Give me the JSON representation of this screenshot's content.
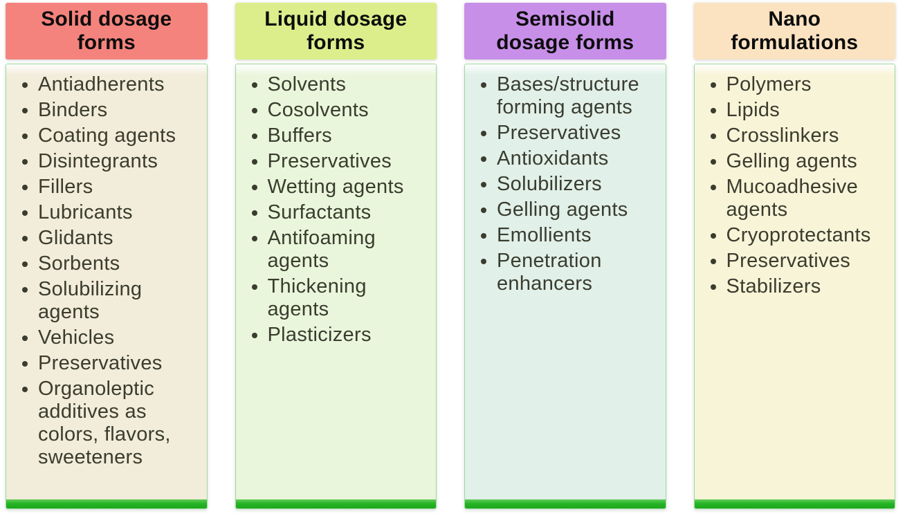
{
  "figure": {
    "description": "Four-column overview of excipient categories by dosage form type"
  },
  "accent": {
    "bottom_bar_color": "#27b527",
    "panel_border_color": "#9fd89f",
    "body_text_color": "#3a3c2e",
    "header_text_color": "#0d0d0d"
  },
  "columns": [
    {
      "title": "Solid dosage forms",
      "title_lines": [
        "Solid dosage",
        "forms"
      ],
      "header_color": "#f5837d",
      "body_color": "#f2ecda",
      "items": [
        "Antiadherents",
        "Binders",
        "Coating agents",
        "Disintegrants",
        "Fillers",
        "Lubricants",
        "Glidants",
        "Sorbents",
        "Solubilizing agents",
        "Vehicles",
        "Preservatives",
        "Organoleptic additives as colors, flavors, sweeteners"
      ]
    },
    {
      "title": "Liquid dosage forms",
      "title_lines": [
        "Liquid dosage",
        "forms"
      ],
      "header_color": "#dcee8b",
      "body_color": "#e9f6dc",
      "items": [
        "Solvents",
        "Cosolvents",
        "Buffers",
        "Preservatives",
        "Wetting agents",
        "Surfactants",
        "Antifoaming agents",
        "Thickening agents",
        "Plasticizers"
      ]
    },
    {
      "title": "Semisolid dosage forms",
      "title_lines": [
        "Semisolid",
        "dosage forms"
      ],
      "header_color": "#c88fe9",
      "body_color": "#e1f0e9",
      "items": [
        "Bases/structure forming agents",
        "Preservatives",
        "Antioxidants",
        "Solubilizers",
        "Gelling agents",
        "Emollients",
        "Penetration enhancers"
      ]
    },
    {
      "title": "Nano formulations",
      "title_lines": [
        "Nano",
        "formulations"
      ],
      "header_color": "#fbe3c2",
      "body_color": "#f8f4d8",
      "items": [
        "Polymers",
        "Lipids",
        "Crosslinkers",
        "Gelling agents",
        "Mucoadhesive agents",
        "Cryoprotectants",
        "Preservatives",
        "Stabilizers"
      ]
    }
  ]
}
